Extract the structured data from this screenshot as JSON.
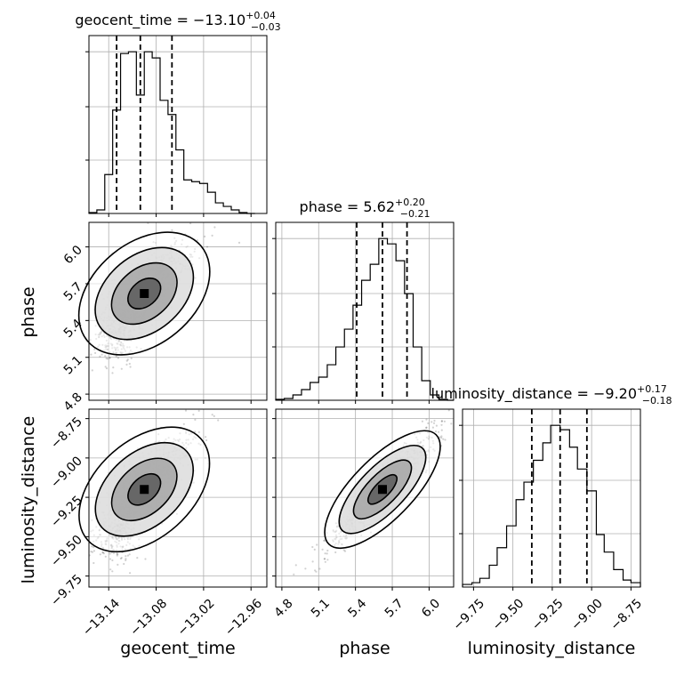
{
  "chart_data": {
    "type": "corner",
    "parameters": [
      "geocent_time",
      "phase",
      "luminosity_distance"
    ],
    "titles": [
      {
        "param": "geocent_time",
        "text": "geocent_time = −13.10",
        "sup": "+0.04",
        "sub": "−0.03"
      },
      {
        "param": "phase",
        "text": "phase = 5.62",
        "sup": "+0.20",
        "sub": "−0.21"
      },
      {
        "param": "luminosity_distance",
        "text": "luminosity_distance = −9.20",
        "sup": "+0.17",
        "sub": "−0.18"
      }
    ],
    "axis_labels": {
      "x": [
        "geocent_time",
        "phase",
        "luminosity_distance"
      ],
      "y": [
        "phase",
        "luminosity_distance"
      ]
    },
    "ranges": {
      "geocent_time": [
        -13.165,
        -12.94
      ],
      "phase": [
        4.75,
        6.2
      ],
      "luminosity_distance": [
        -9.82,
        -8.69
      ]
    },
    "ticks": {
      "geocent_time": {
        "values": [
          -13.14,
          -13.08,
          -13.02,
          -12.96
        ],
        "labels": [
          "−13.14",
          "−13.08",
          "−13.02",
          "−12.96"
        ]
      },
      "phase": {
        "values": [
          4.8,
          5.1,
          5.4,
          5.7,
          6.0
        ],
        "labels": [
          "4.8",
          "5.1",
          "5.4",
          "5.7",
          "6.0"
        ]
      },
      "luminosity_distance": {
        "values": [
          -9.75,
          -9.5,
          -9.25,
          -9.0,
          -8.75
        ],
        "labels": [
          "−9.75",
          "−9.50",
          "−9.25",
          "−9.00",
          "−8.75"
        ]
      }
    },
    "quantiles": {
      "geocent_time": [
        -13.13,
        -13.1,
        -13.06
      ],
      "phase": [
        5.41,
        5.62,
        5.82
      ],
      "luminosity_distance": [
        -9.38,
        -9.2,
        -9.03
      ]
    },
    "histograms": {
      "geocent_time": {
        "edges": [
          -13.165,
          -13.155,
          -13.145,
          -13.135,
          -13.125,
          -13.115,
          -13.105,
          -13.095,
          -13.085,
          -13.075,
          -13.065,
          -13.055,
          -13.045,
          -13.035,
          -13.025,
          -13.015,
          -13.005,
          -12.995,
          -12.985,
          -12.975,
          -12.965,
          -12.955
        ],
        "counts": [
          1,
          4,
          44,
          117,
          181,
          183,
          134,
          183,
          176,
          128,
          112,
          72,
          38,
          36,
          34,
          24,
          12,
          8,
          4,
          1,
          0
        ]
      },
      "phase": {
        "edges": [
          4.75,
          4.82,
          4.89,
          4.96,
          5.03,
          5.1,
          5.17,
          5.24,
          5.31,
          5.38,
          5.45,
          5.52,
          5.59,
          5.66,
          5.73,
          5.8,
          5.87,
          5.94,
          6.01,
          6.08,
          6.15,
          6.2
        ],
        "counts": [
          1,
          2,
          6,
          12,
          20,
          26,
          40,
          60,
          80,
          107,
          135,
          153,
          182,
          176,
          157,
          120,
          60,
          22,
          6,
          1,
          0
        ]
      },
      "luminosity_distance": {
        "edges": [
          -9.82,
          -9.76,
          -9.71,
          -9.65,
          -9.6,
          -9.54,
          -9.48,
          -9.43,
          -9.37,
          -9.31,
          -9.26,
          -9.2,
          -9.14,
          -9.09,
          -9.03,
          -8.97,
          -8.92,
          -8.86,
          -8.8,
          -8.75,
          -8.69
        ],
        "counts": [
          3,
          5,
          10,
          25,
          45,
          70,
          100,
          120,
          145,
          165,
          185,
          180,
          160,
          135,
          110,
          60,
          40,
          20,
          8,
          5
        ]
      }
    },
    "grid": true,
    "contours": "density levels with filled grey shading and dashed quantile lines"
  }
}
